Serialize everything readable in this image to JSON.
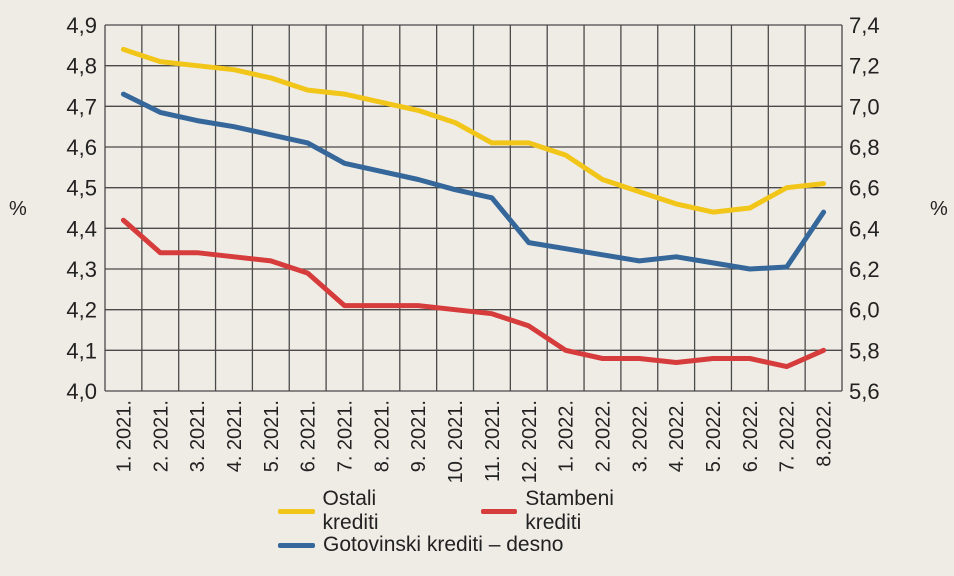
{
  "chart_data": {
    "type": "line",
    "title": "",
    "xlabel": "",
    "ylabel": "%",
    "y2label": "%",
    "categories": [
      "1. 2021.",
      "2. 2021.",
      "3. 2021.",
      "4. 2021.",
      "5. 2021.",
      "6. 2021.",
      "7. 2021.",
      "8. 2021.",
      "9. 2021.",
      "10. 2021.",
      "11. 2021.",
      "12. 2021.",
      "1. 2022.",
      "2. 2022.",
      "3. 2022.",
      "4. 2022.",
      "5. 2022.",
      "6. 2022.",
      "7. 2022.",
      "8.2022."
    ],
    "ylim": [
      4.0,
      4.9
    ],
    "y2lim": [
      5.6,
      7.4
    ],
    "yticks": [
      "4,0",
      "4,1",
      "4,2",
      "4,3",
      "4,4",
      "4,5",
      "4,6",
      "4,7",
      "4,8",
      "4,9"
    ],
    "y2ticks": [
      "5,6",
      "5,8",
      "6,0",
      "6,2",
      "6,4",
      "6,6",
      "6,8",
      "7,0",
      "7,2",
      "7,4"
    ],
    "grid": true,
    "legend_position": "bottom",
    "series": [
      {
        "name": "Ostali krediti",
        "axis": "left",
        "color": "#F2C519",
        "values": [
          4.84,
          4.81,
          4.8,
          4.79,
          4.77,
          4.74,
          4.73,
          4.71,
          4.69,
          4.66,
          4.61,
          4.61,
          4.58,
          4.52,
          4.49,
          4.46,
          4.44,
          4.45,
          4.5,
          4.51
        ]
      },
      {
        "name": "Stambeni krediti",
        "axis": "left",
        "color": "#D63C3C",
        "values": [
          4.42,
          4.34,
          4.34,
          4.33,
          4.32,
          4.29,
          4.21,
          4.21,
          4.21,
          4.2,
          4.19,
          4.16,
          4.1,
          4.08,
          4.08,
          4.07,
          4.08,
          4.08,
          4.06,
          4.1
        ]
      },
      {
        "name": "Gotovinski krediti – desno",
        "axis": "right",
        "color": "#35679A",
        "values": [
          7.06,
          6.97,
          6.93,
          6.9,
          6.86,
          6.82,
          6.72,
          6.68,
          6.64,
          6.59,
          6.55,
          6.33,
          6.3,
          6.27,
          6.24,
          6.26,
          6.23,
          6.2,
          6.21,
          6.48
        ]
      }
    ]
  },
  "legend": {
    "items": [
      "Ostali krediti",
      "Stambeni krediti",
      "Gotovinski krediti – desno"
    ]
  }
}
